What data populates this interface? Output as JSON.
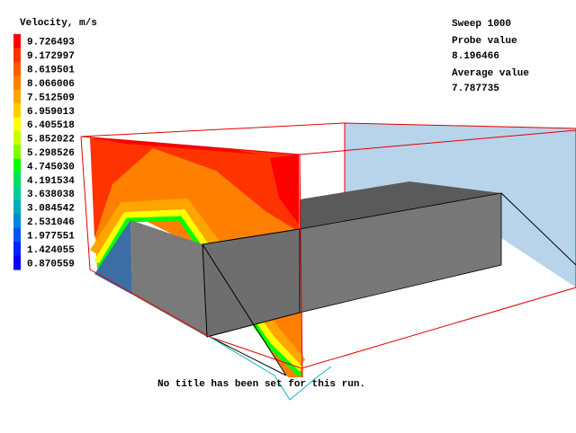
{
  "legend": {
    "title": "Velocity, m/s",
    "levels": [
      {
        "label": "9.726493",
        "color": "#ff0000"
      },
      {
        "label": "9.172997",
        "color": "#ff3300"
      },
      {
        "label": "8.619501",
        "color": "#ff5a00"
      },
      {
        "label": "8.066006",
        "color": "#ff8000"
      },
      {
        "label": "7.512509",
        "color": "#ffa500"
      },
      {
        "label": "6.959013",
        "color": "#ffcc00"
      },
      {
        "label": "6.405518",
        "color": "#ffff00"
      },
      {
        "label": "5.852022",
        "color": "#ccff00"
      },
      {
        "label": "5.298526",
        "color": "#80ff00"
      },
      {
        "label": "4.745030",
        "color": "#00ff00"
      },
      {
        "label": "4.191534",
        "color": "#00e060"
      },
      {
        "label": "3.638038",
        "color": "#00cc99"
      },
      {
        "label": "3.084542",
        "color": "#00aabb"
      },
      {
        "label": "2.531046",
        "color": "#0088dd"
      },
      {
        "label": "1.977551",
        "color": "#0055ee"
      },
      {
        "label": "1.424055",
        "color": "#0022ff"
      },
      {
        "label": "0.870559",
        "color": "#0000ff"
      }
    ]
  },
  "info": {
    "sweep": "Sweep 1000",
    "probe_label": "Probe value",
    "probe_value": "8.196466",
    "average_label": "Average value",
    "average_value": "7.787735"
  },
  "footer": "No title has been set for this run."
}
